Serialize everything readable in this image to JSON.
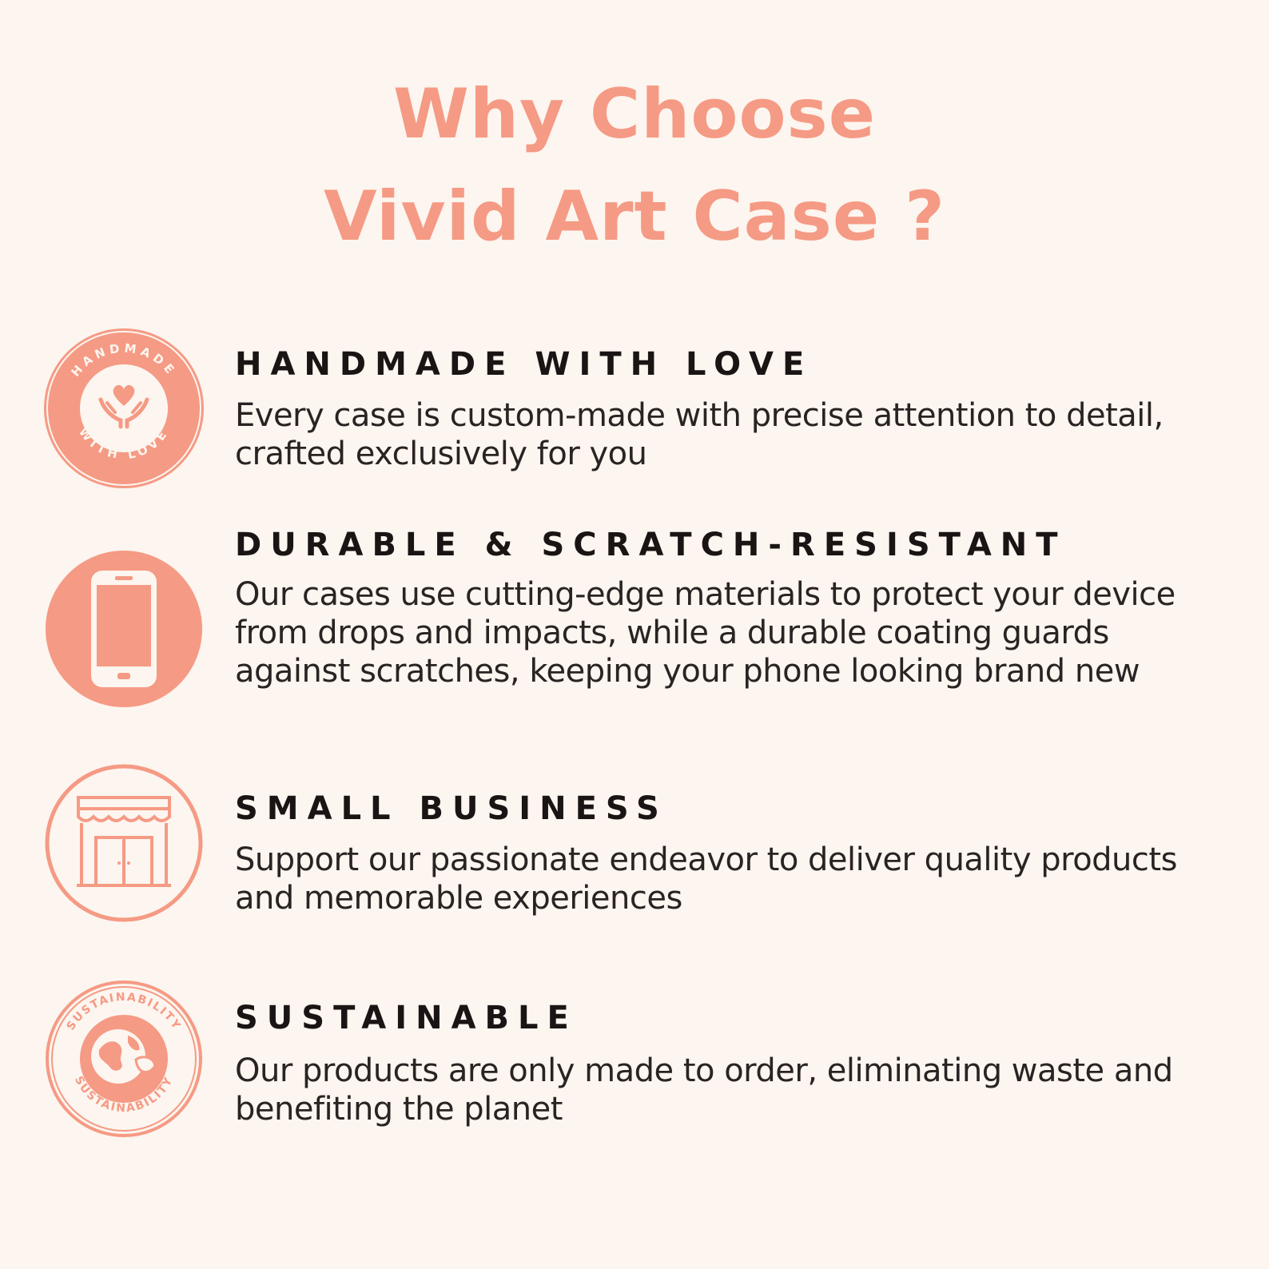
{
  "title": {
    "line1": "Why Choose",
    "line2": "Vivid Art Case ?"
  },
  "colors": {
    "accent": "#f59a84",
    "background": "#fdf5ef",
    "heading": "#1a1414",
    "body": "#2a2323"
  },
  "features": [
    {
      "heading": "HANDMADE WITH LOVE",
      "text": "Every case is custom-made with precise attention to detail, crafted exclusively for you",
      "icon": "handmade-with-love-badge-icon",
      "badge_text_top": "HANDMADE",
      "badge_text_bottom": "WITH LOVE"
    },
    {
      "heading": "DURABLE & SCRATCH-RESISTANT",
      "text": "Our cases use cutting-edge materials to protect your device from drops and impacts, while a durable coating guards against scratches, keeping your phone looking brand new",
      "icon": "smartphone-icon"
    },
    {
      "heading": "SMALL BUSINESS",
      "text": "Support our passionate endeavor to deliver quality products and memorable experiences",
      "icon": "storefront-icon"
    },
    {
      "heading": "SUSTAINABLE",
      "text": "Our products are only made to order, eliminating waste and benefiting the planet",
      "icon": "sustainability-globe-icon",
      "badge_text_top": "SUSTAINABILITY",
      "badge_text_bottom": "SUSTAINABILITY"
    }
  ]
}
